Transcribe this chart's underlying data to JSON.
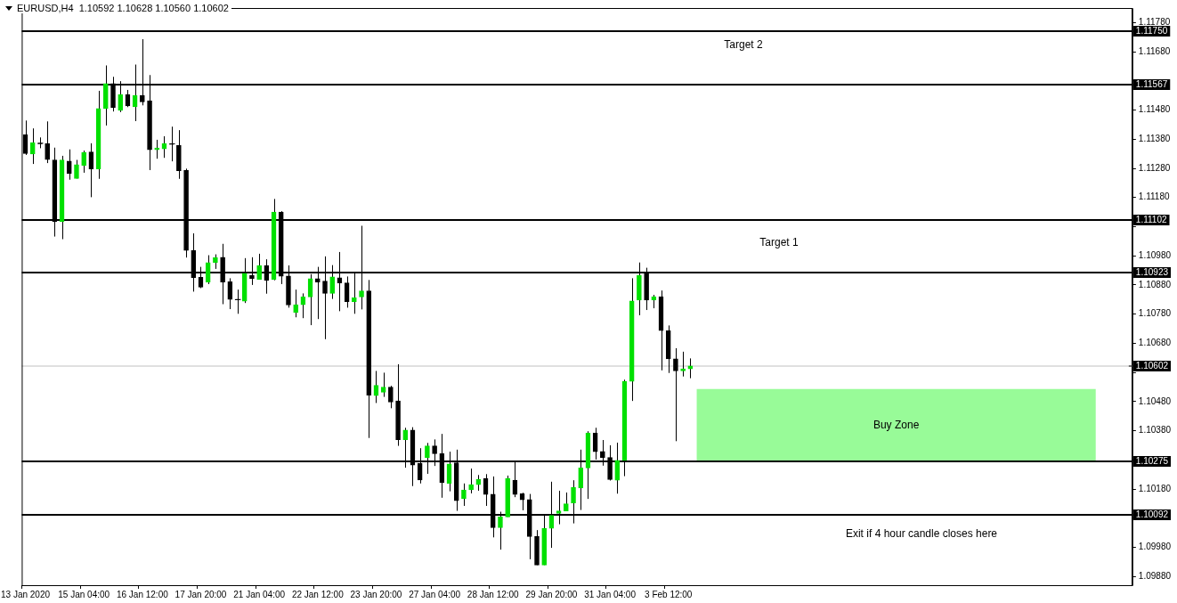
{
  "chart_data": {
    "type": "candlestick",
    "title": "EURUSD,H4  1.10592 1.10628 1.10560 1.10602",
    "categories": [
      "13 Jan 2020",
      null,
      null,
      null,
      null,
      null,
      null,
      null,
      "15 Jan 04:00",
      null,
      null,
      null,
      null,
      null,
      null,
      null,
      "16 Jan 12:00",
      null,
      null,
      null,
      null,
      null,
      null,
      null,
      "17 Jan 20:00",
      null,
      null,
      null,
      null,
      null,
      null,
      null,
      "21 Jan 04:00",
      null,
      null,
      null,
      null,
      null,
      null,
      null,
      "22 Jan 12:00",
      null,
      null,
      null,
      null,
      null,
      null,
      null,
      "23 Jan 20:00",
      null,
      null,
      null,
      null,
      null,
      null,
      null,
      "27 Jan 04:00",
      null,
      null,
      null,
      null,
      null,
      null,
      null,
      "28 Jan 12:00",
      null,
      null,
      null,
      null,
      null,
      null,
      null,
      "29 Jan 20:00",
      null,
      null,
      null,
      null,
      null,
      null,
      null,
      "31 Jan 04:00",
      null,
      null,
      null,
      null,
      null,
      null,
      null,
      "3 Feb 12:00",
      null,
      null,
      null,
      null,
      null,
      null,
      null,
      null,
      null,
      null,
      null,
      null,
      null,
      null,
      null,
      null,
      null,
      null,
      null,
      null,
      null,
      null,
      null,
      null,
      null,
      null,
      null,
      null,
      null,
      null,
      null,
      null,
      null,
      null,
      null,
      null,
      null,
      null,
      null,
      null,
      null,
      null,
      null,
      null,
      null,
      null,
      null,
      null,
      null,
      null,
      null,
      null,
      null,
      null,
      null,
      null,
      null,
      null,
      null,
      null,
      null,
      null,
      null
    ],
    "ohlc": [
      [
        1.11396,
        1.11444,
        1.11326,
        1.11331
      ],
      [
        1.11329,
        1.11417,
        1.11295,
        1.11368
      ],
      [
        1.11366,
        1.11386,
        1.11349,
        1.11364
      ],
      [
        1.11365,
        1.11441,
        1.11298,
        1.1131
      ],
      [
        1.11309,
        1.11351,
        1.11046,
        1.11098
      ],
      [
        1.11098,
        1.11323,
        1.11037,
        1.11309
      ],
      [
        1.11305,
        1.11345,
        1.11241,
        1.11262
      ],
      [
        1.11245,
        1.11309,
        1.11245,
        1.11293
      ],
      [
        1.1129,
        1.11341,
        1.11265,
        1.11335
      ],
      [
        1.11336,
        1.11366,
        1.11181,
        1.11278
      ],
      [
        1.11278,
        1.11546,
        1.11244,
        1.11485
      ],
      [
        1.11485,
        1.11633,
        1.11427,
        1.11571
      ],
      [
        1.11571,
        1.11594,
        1.11475,
        1.11488
      ],
      [
        1.11479,
        1.11579,
        1.11473,
        1.11533
      ],
      [
        1.11533,
        1.11549,
        1.1149,
        1.11494
      ],
      [
        1.11491,
        1.11636,
        1.11442,
        1.1153
      ],
      [
        1.1153,
        1.11723,
        1.11496,
        1.11508
      ],
      [
        1.11512,
        1.116,
        1.11274,
        1.11344
      ],
      [
        1.11344,
        1.11378,
        1.11313,
        1.1135
      ],
      [
        1.11347,
        1.1139,
        1.11316,
        1.11365
      ],
      [
        1.11364,
        1.11423,
        1.11304,
        1.11362
      ],
      [
        1.11359,
        1.11411,
        1.11244,
        1.11272
      ],
      [
        1.11273,
        1.11279,
        1.10974,
        1.10998
      ],
      [
        1.10999,
        1.11057,
        1.10857,
        1.10905
      ],
      [
        1.10906,
        1.10942,
        1.10869,
        1.10872
      ],
      [
        1.1089,
        1.10982,
        1.10883,
        1.10957
      ],
      [
        1.10957,
        1.10985,
        1.10935,
        1.10974
      ],
      [
        1.10975,
        1.11021,
        1.10814,
        1.1089
      ],
      [
        1.10891,
        1.10903,
        1.10797,
        1.1083
      ],
      [
        1.1083,
        1.10864,
        1.10781,
        1.10829
      ],
      [
        1.10824,
        1.10972,
        1.10818,
        1.1092
      ],
      [
        1.10912,
        1.10975,
        1.1088,
        1.10902
      ],
      [
        1.10899,
        1.10987,
        1.10899,
        1.10947
      ],
      [
        1.10947,
        1.10968,
        1.1085,
        1.10896
      ],
      [
        1.10899,
        1.11175,
        1.10896,
        1.1113
      ],
      [
        1.1113,
        1.11133,
        1.10883,
        1.1091
      ],
      [
        1.10911,
        1.10947,
        1.10802,
        1.10811
      ],
      [
        1.10785,
        1.10864,
        1.10769,
        1.10812
      ],
      [
        1.10812,
        1.10851,
        1.10766,
        1.10839
      ],
      [
        1.10839,
        1.10917,
        1.10742,
        1.10902
      ],
      [
        1.10902,
        1.10942,
        1.10763,
        1.1089
      ],
      [
        1.10893,
        1.10978,
        1.10694,
        1.10851
      ],
      [
        1.10851,
        1.10948,
        1.10832,
        1.10908
      ],
      [
        1.10905,
        1.10993,
        1.1079,
        1.10887
      ],
      [
        1.10887,
        1.10909,
        1.10802,
        1.10823
      ],
      [
        1.10823,
        1.1092,
        1.10781,
        1.10836
      ],
      [
        1.10839,
        1.11083,
        1.10796,
        1.1086
      ],
      [
        1.1086,
        1.10897,
        1.10355,
        1.10502
      ],
      [
        1.105,
        1.10585,
        1.10475,
        1.10536
      ],
      [
        1.10512,
        1.10579,
        1.10496,
        1.1053
      ],
      [
        1.1053,
        1.10534,
        1.10457,
        1.10478
      ],
      [
        1.10482,
        1.10608,
        1.10328,
        1.10349
      ],
      [
        1.10349,
        1.1039,
        1.10253,
        1.10382
      ],
      [
        1.10382,
        1.10392,
        1.1019,
        1.10262
      ],
      [
        1.10268,
        1.1032,
        1.10199,
        1.10211
      ],
      [
        1.10287,
        1.10338,
        1.10232,
        1.10328
      ],
      [
        1.10328,
        1.1035,
        1.10259,
        1.10301
      ],
      [
        1.10301,
        1.10369,
        1.1015,
        1.10202
      ],
      [
        1.10199,
        1.10308,
        1.10172,
        1.10266
      ],
      [
        1.1027,
        1.10315,
        1.10105,
        1.1014
      ],
      [
        1.10147,
        1.10199,
        1.10122,
        1.10177
      ],
      [
        1.10177,
        1.1025,
        1.10165,
        1.10195
      ],
      [
        1.10195,
        1.10228,
        1.10174,
        1.10213
      ],
      [
        1.10216,
        1.10231,
        1.10122,
        1.10161
      ],
      [
        1.10162,
        1.10223,
        1.10014,
        1.10047
      ],
      [
        1.10047,
        1.10102,
        1.09972,
        1.10084
      ],
      [
        1.10084,
        1.10226,
        1.10084,
        1.10216
      ],
      [
        1.1021,
        1.10274,
        1.10152,
        1.10161
      ],
      [
        1.10164,
        1.10167,
        1.10107,
        1.10143
      ],
      [
        1.10144,
        1.10163,
        1.09939,
        1.10017
      ],
      [
        1.10018,
        1.10039,
        1.09919,
        1.09919
      ],
      [
        1.09919,
        1.1009,
        1.09919,
        1.10045
      ],
      [
        1.10045,
        1.10205,
        1.09978,
        1.1009
      ],
      [
        1.10096,
        1.10174,
        1.10059,
        1.10105
      ],
      [
        1.10105,
        1.10168,
        1.10105,
        1.10129
      ],
      [
        1.10132,
        1.1021,
        1.10062,
        1.10186
      ],
      [
        1.10183,
        1.10315,
        1.10108,
        1.10252
      ],
      [
        1.10252,
        1.10378,
        1.10146,
        1.10372
      ],
      [
        1.10372,
        1.1039,
        1.10281,
        1.10308
      ],
      [
        1.10309,
        1.10348,
        1.1026,
        1.10287
      ],
      [
        1.10288,
        1.1033,
        1.10209,
        1.10212
      ],
      [
        1.1021,
        1.10339,
        1.10164,
        1.10278
      ],
      [
        1.10278,
        1.10555,
        1.10224,
        1.10549
      ],
      [
        1.10549,
        1.10903,
        1.10482,
        1.10825
      ],
      [
        1.10828,
        1.10957,
        1.10776,
        1.10912
      ],
      [
        1.10924,
        1.10939,
        1.10794,
        1.10828
      ],
      [
        1.10828,
        1.10846,
        1.108,
        1.1084
      ],
      [
        1.1084,
        1.10861,
        1.10587,
        1.10723
      ],
      [
        1.10723,
        1.10741,
        1.10578,
        1.10626
      ],
      [
        1.10627,
        1.10663,
        1.10344,
        1.10585
      ],
      [
        1.10585,
        1.10651,
        1.10566,
        1.10592
      ],
      [
        1.10592,
        1.10628,
        1.1056,
        1.10602
      ],
      null,
      null,
      null,
      null,
      null,
      null,
      null,
      null,
      null,
      null,
      null,
      null,
      null,
      null,
      null,
      null,
      null,
      null,
      null,
      null,
      null,
      null,
      null,
      null,
      null,
      null,
      null,
      null,
      null,
      null,
      null,
      null,
      null,
      null,
      null,
      null,
      null,
      null,
      null,
      null,
      null,
      null,
      null,
      null,
      null,
      null,
      null,
      null,
      null,
      null,
      null,
      null,
      null,
      null,
      null,
      null,
      null,
      null,
      null,
      null
    ],
    "colors": [
      "#000000",
      "#00e000",
      "#000000",
      "#000000",
      "#000000",
      "#00e000",
      "#000000",
      "#00e000",
      "#00e000",
      "#000000",
      "#00e000",
      "#00e000",
      "#000000",
      "#00e000",
      "#000000",
      "#00e000",
      "#000000",
      "#000000",
      "#00e000",
      "#00e000",
      "#000000",
      "#000000",
      "#000000",
      "#000000",
      "#000000",
      "#00e000",
      "#00e000",
      "#000000",
      "#000000",
      "#000000",
      "#00e000",
      "#000000",
      "#00e000",
      "#000000",
      "#00e000",
      "#000000",
      "#000000",
      "#00e000",
      "#00e000",
      "#00e000",
      "#000000",
      "#000000",
      "#00e000",
      "#000000",
      "#000000",
      "#00e000",
      "#00e000",
      "#000000",
      "#00e000",
      "#00e000",
      "#000000",
      "#000000",
      "#00e000",
      "#000000",
      "#000000",
      "#00e000",
      "#000000",
      "#000000",
      "#00e000",
      "#000000",
      "#00e000",
      "#00e000",
      "#00e000",
      "#000000",
      "#000000",
      "#00e000",
      "#00e000",
      "#000000",
      "#000000",
      "#000000",
      "#000000",
      "#00e000",
      "#00e000",
      "#00e000",
      "#00e000",
      "#00e000",
      "#00e000",
      "#00e000",
      "#000000",
      "#000000",
      "#000000",
      "#00e000",
      "#00e000",
      "#00e000",
      "#00e000",
      "#000000",
      "#00e000",
      "#000000",
      "#000000",
      "#000000",
      "#00e000",
      "#00e000",
      null,
      null,
      null,
      null,
      null,
      null,
      null,
      null,
      null,
      null,
      null,
      null,
      null,
      null,
      null,
      null,
      null,
      null,
      null,
      null,
      null,
      null,
      null,
      null,
      null,
      null,
      null,
      null,
      null,
      null,
      null,
      null,
      null,
      null,
      null,
      null,
      null,
      null,
      null,
      null,
      null,
      null,
      null,
      null,
      null,
      null,
      null,
      null,
      null,
      null,
      null,
      null,
      null,
      null,
      null,
      null,
      null,
      null,
      null,
      null
    ],
    "ylim": [
      1.0985,
      1.1183
    ],
    "yticks": [
      {
        "value": 1.0988,
        "label": "1.09880"
      },
      {
        "value": 1.0998,
        "label": "1.09980"
      },
      {
        "value": 1.1008,
        "label": null
      },
      {
        "value": 1.1018,
        "label": "1.10180"
      },
      {
        "value": 1.1028,
        "label": null
      },
      {
        "value": 1.1038,
        "label": "1.10380"
      },
      {
        "value": 1.1048,
        "label": "1.10480"
      },
      {
        "value": 1.1058,
        "label": null
      },
      {
        "value": 1.1068,
        "label": "1.10680"
      },
      {
        "value": 1.1078,
        "label": "1.10780"
      },
      {
        "value": 1.1088,
        "label": "1.10880"
      },
      {
        "value": 1.1098,
        "label": "1.10980"
      },
      {
        "value": 1.1108,
        "label": null
      },
      {
        "value": 1.1118,
        "label": "1.11180"
      },
      {
        "value": 1.1128,
        "label": "1.11280"
      },
      {
        "value": 1.1138,
        "label": "1.11380"
      },
      {
        "value": 1.1148,
        "label": "1.11480"
      },
      {
        "value": 1.1158,
        "label": null
      },
      {
        "value": 1.1168,
        "label": "1.11680"
      },
      {
        "value": 1.1178,
        "label": "1.11780"
      }
    ],
    "ref_lines": [
      {
        "axis": "y",
        "value": 1.1175,
        "label": "1.11750",
        "color": "#000000"
      },
      {
        "axis": "y",
        "value": 1.11567,
        "label": "1.11567",
        "color": "#000000"
      },
      {
        "axis": "y",
        "value": 1.11102,
        "label": "1.11102",
        "color": "#000000"
      },
      {
        "axis": "y",
        "value": 1.10923,
        "label": "1.10923",
        "color": "#000000"
      },
      {
        "axis": "y",
        "value": 1.10602,
        "label": "1.10602",
        "color": "#c0c0c0"
      },
      {
        "axis": "y",
        "value": 1.10275,
        "label": "1.10275",
        "color": "#000000"
      },
      {
        "axis": "y",
        "value": 1.10092,
        "label": "1.10092",
        "color": "#000000"
      }
    ],
    "bands": [
      {
        "axis": "y",
        "from": 1.10275,
        "to": 1.10523,
        "label": "Buy Zone",
        "color": "#98fb98"
      }
    ],
    "annotations": [
      "Target 2",
      "Target 1",
      "Exit if 4 hour candle closes here"
    ]
  }
}
